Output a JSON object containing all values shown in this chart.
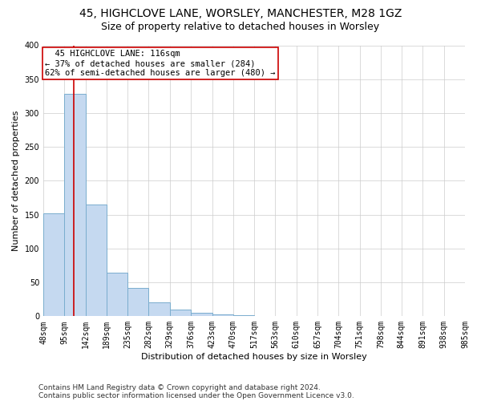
{
  "title1": "45, HIGHCLOVE LANE, WORSLEY, MANCHESTER, M28 1GZ",
  "title2": "Size of property relative to detached houses in Worsley",
  "xlabel": "Distribution of detached houses by size in Worsley",
  "ylabel": "Number of detached properties",
  "footnote1": "Contains HM Land Registry data © Crown copyright and database right 2024.",
  "footnote2": "Contains public sector information licensed under the Open Government Licence v3.0.",
  "annotation_line1": "45 HIGHCLOVE LANE: 116sqm",
  "annotation_line2": "← 37% of detached houses are smaller (284)",
  "annotation_line3": "62% of semi-detached houses are larger (480) →",
  "bin_edges": [
    48,
    95,
    142,
    189,
    235,
    282,
    329,
    376,
    423,
    470,
    517,
    563,
    610,
    657,
    704,
    751,
    798,
    844,
    891,
    938,
    985
  ],
  "bin_labels": [
    "48sqm",
    "95sqm",
    "142sqm",
    "189sqm",
    "235sqm",
    "282sqm",
    "329sqm",
    "376sqm",
    "423sqm",
    "470sqm",
    "517sqm",
    "563sqm",
    "610sqm",
    "657sqm",
    "704sqm",
    "751sqm",
    "798sqm",
    "844sqm",
    "891sqm",
    "938sqm",
    "985sqm"
  ],
  "bar_heights": [
    152,
    328,
    165,
    64,
    42,
    20,
    10,
    5,
    3,
    2,
    0,
    0,
    0,
    0,
    0,
    0,
    0,
    0,
    0,
    0
  ],
  "bar_color": "#c5d9f0",
  "bar_edge_color": "#7aadce",
  "vline_color": "#cc0000",
  "vline_x": 116,
  "ylim": [
    0,
    400
  ],
  "yticks": [
    0,
    50,
    100,
    150,
    200,
    250,
    300,
    350,
    400
  ],
  "background_color": "#ffffff",
  "grid_color": "#cccccc",
  "annotation_box_color": "#ffffff",
  "annotation_box_edge": "#cc0000",
  "title_fontsize": 10,
  "subtitle_fontsize": 9,
  "axis_label_fontsize": 8,
  "tick_fontsize": 7,
  "annotation_fontsize": 7.5,
  "footnote_fontsize": 6.5
}
